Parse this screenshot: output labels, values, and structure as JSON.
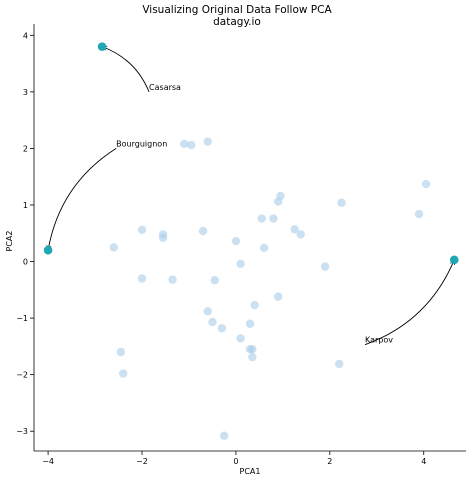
{
  "chart_data": {
    "type": "scatter",
    "title": "Visualizing Original Data Follow PCA",
    "subtitle": "datagy.io",
    "xlabel": "PCA1",
    "ylabel": "PCA2",
    "xlim": [
      -4.3,
      4.9
    ],
    "ylim": [
      -3.35,
      4.2
    ],
    "xticks": [
      -4,
      -2,
      0,
      2,
      4
    ],
    "yticks": [
      -3,
      -2,
      -1,
      0,
      1,
      2,
      3,
      4
    ],
    "spines": "left-bottom",
    "grid": false,
    "colors": {
      "background_points": "#a8cbe8",
      "highlight_points": "#1fa8b4",
      "arrows": "#000000"
    },
    "background_points": [
      {
        "x": -1.1,
        "y": 2.08
      },
      {
        "x": -0.95,
        "y": 2.06
      },
      {
        "x": -0.6,
        "y": 2.12
      },
      {
        "x": -2.6,
        "y": 0.25
      },
      {
        "x": -2.0,
        "y": 0.56
      },
      {
        "x": -1.55,
        "y": 0.48
      },
      {
        "x": -1.55,
        "y": 0.42
      },
      {
        "x": -0.7,
        "y": 0.54
      },
      {
        "x": 0.0,
        "y": 0.36
      },
      {
        "x": 0.55,
        "y": 0.76
      },
      {
        "x": 0.8,
        "y": 0.76
      },
      {
        "x": 0.9,
        "y": 1.06
      },
      {
        "x": 0.95,
        "y": 1.16
      },
      {
        "x": 2.25,
        "y": 1.04
      },
      {
        "x": 1.25,
        "y": 0.57
      },
      {
        "x": 1.38,
        "y": 0.48
      },
      {
        "x": 0.6,
        "y": 0.24
      },
      {
        "x": 0.1,
        "y": -0.04
      },
      {
        "x": -2.0,
        "y": -0.3
      },
      {
        "x": -1.35,
        "y": -0.32
      },
      {
        "x": -0.45,
        "y": -0.33
      },
      {
        "x": 0.4,
        "y": -0.77
      },
      {
        "x": 0.9,
        "y": -0.62
      },
      {
        "x": -0.6,
        "y": -0.88
      },
      {
        "x": -0.5,
        "y": -1.07
      },
      {
        "x": -0.3,
        "y": -1.18
      },
      {
        "x": 0.3,
        "y": -1.1
      },
      {
        "x": 0.1,
        "y": -1.36
      },
      {
        "x": 0.3,
        "y": -1.55
      },
      {
        "x": 0.35,
        "y": -1.55
      },
      {
        "x": 0.35,
        "y": -1.69
      },
      {
        "x": 1.9,
        "y": -0.09
      },
      {
        "x": 2.2,
        "y": -1.81
      },
      {
        "x": -2.45,
        "y": -1.6
      },
      {
        "x": -2.4,
        "y": -1.98
      },
      {
        "x": -0.25,
        "y": -3.08
      },
      {
        "x": 3.9,
        "y": 0.84
      },
      {
        "x": 4.05,
        "y": 1.37
      }
    ],
    "highlighted": [
      {
        "name": "Casarsa",
        "x": -2.85,
        "y": 3.8
      },
      {
        "name": "Bourguignon",
        "x": -4.0,
        "y": 0.2
      },
      {
        "name": "Karpov",
        "x": 4.65,
        "y": 0.03
      }
    ],
    "annotations": [
      {
        "text": "Casarsa",
        "point_x": -2.85,
        "point_y": 3.8,
        "text_x": -1.85,
        "text_y": 3.0
      },
      {
        "text": "Bourguignon",
        "point_x": -4.0,
        "point_y": 0.2,
        "text_x": -2.55,
        "text_y": 2.0
      },
      {
        "text": "Karpov",
        "point_x": 4.65,
        "point_y": 0.03,
        "text_x": 2.75,
        "text_y": -1.47
      }
    ]
  }
}
